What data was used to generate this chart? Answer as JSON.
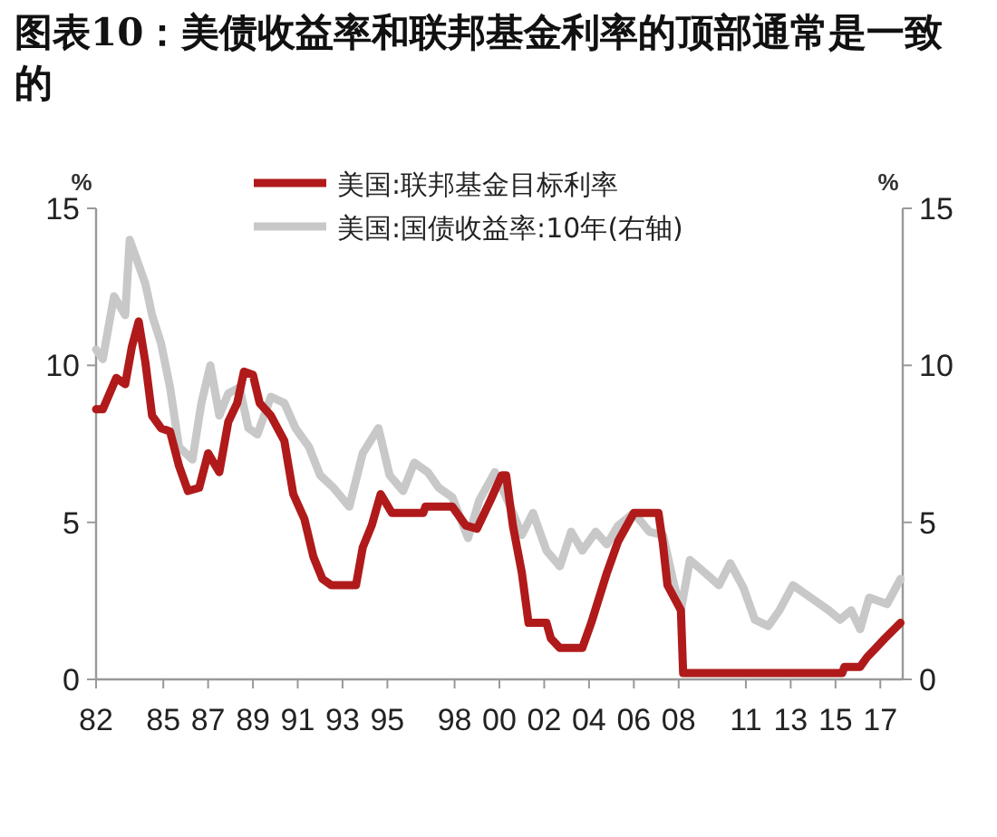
{
  "chart_data": {
    "type": "line",
    "title": "图表10：美债收益率和联邦基金利率的顶部通常是一致的",
    "ylabel": "%",
    "y2label": "%",
    "xlim": [
      1982,
      2018
    ],
    "ylim": [
      0,
      15
    ],
    "y2lim": [
      0,
      15
    ],
    "xticks": [
      {
        "value": 1982,
        "label": "82"
      },
      {
        "value": 1985,
        "label": "85"
      },
      {
        "value": 1987,
        "label": "87"
      },
      {
        "value": 1989,
        "label": "89"
      },
      {
        "value": 1991,
        "label": "91"
      },
      {
        "value": 1993,
        "label": "93"
      },
      {
        "value": 1995,
        "label": "95"
      },
      {
        "value": 1998,
        "label": "98"
      },
      {
        "value": 2000,
        "label": "00"
      },
      {
        "value": 2002,
        "label": "02"
      },
      {
        "value": 2004,
        "label": "04"
      },
      {
        "value": 2006,
        "label": "06"
      },
      {
        "value": 2008,
        "label": "08"
      },
      {
        "value": 2011,
        "label": "11"
      },
      {
        "value": 2013,
        "label": "13"
      },
      {
        "value": 2015,
        "label": "15"
      },
      {
        "value": 2017,
        "label": "17"
      }
    ],
    "yticks": [
      0,
      5,
      10,
      15
    ],
    "y2ticks": [
      0,
      5,
      10,
      15
    ],
    "legend": "top",
    "grid": false,
    "series": [
      {
        "name": "美国:联邦基金目标利率",
        "color": "#b01a1a",
        "x": [
          1982.0,
          1982.3,
          1982.9,
          1983.3,
          1983.6,
          1983.9,
          1984.2,
          1984.5,
          1984.9,
          1985.3,
          1985.7,
          1986.1,
          1986.6,
          1987.0,
          1987.5,
          1987.9,
          1988.3,
          1988.6,
          1989.0,
          1989.3,
          1989.8,
          1990.4,
          1990.8,
          1991.3,
          1991.7,
          1992.1,
          1992.5,
          1993.6,
          1993.9,
          1994.3,
          1994.7,
          1995.2,
          1996.6,
          1996.7,
          1997.9,
          1998.5,
          1999.0,
          1999.6,
          2000.1,
          2000.3,
          2000.6,
          2001.0,
          2001.3,
          2002.1,
          2002.3,
          2002.7,
          2003.7,
          2004.1,
          2004.8,
          2005.3,
          2006.0,
          2007.1,
          2007.3,
          2007.5,
          2008.1,
          2008.2,
          2015.3,
          2015.4,
          2016.1,
          2016.4,
          2016.8,
          2017.2,
          2017.9
        ],
        "values": [
          8.6,
          8.6,
          9.6,
          9.4,
          10.6,
          11.4,
          10.1,
          8.4,
          8.0,
          7.9,
          6.8,
          6.0,
          6.1,
          7.2,
          6.6,
          8.2,
          8.8,
          9.8,
          9.7,
          8.8,
          8.4,
          7.6,
          5.9,
          5.1,
          3.9,
          3.2,
          3.0,
          3.0,
          4.2,
          4.9,
          5.9,
          5.3,
          5.3,
          5.5,
          5.5,
          4.9,
          4.8,
          5.7,
          6.5,
          6.5,
          4.9,
          3.4,
          1.8,
          1.8,
          1.3,
          1.0,
          1.0,
          1.8,
          3.4,
          4.4,
          5.3,
          5.3,
          4.3,
          3.0,
          2.2,
          0.2,
          0.2,
          0.4,
          0.4,
          0.7,
          1.0,
          1.3,
          1.8
        ]
      },
      {
        "name": "美国:国债收益率:10年(右轴)",
        "color": "#c8c8c8",
        "axis": "y2",
        "x": [
          1982.0,
          1982.3,
          1982.8,
          1983.3,
          1983.5,
          1984.2,
          1984.5,
          1984.9,
          1985.3,
          1985.7,
          1986.3,
          1986.7,
          1987.1,
          1987.5,
          1987.9,
          1988.4,
          1988.8,
          1989.2,
          1989.8,
          1990.4,
          1990.9,
          1991.5,
          1992.0,
          1992.6,
          1993.3,
          1993.9,
          1994.6,
          1995.1,
          1995.7,
          1996.2,
          1996.8,
          1997.3,
          1997.9,
          1998.6,
          1999.1,
          1999.8,
          2000.3,
          2000.6,
          2001.0,
          2001.5,
          2002.1,
          2002.7,
          2003.2,
          2003.7,
          2004.3,
          2004.8,
          2005.3,
          2006.0,
          2006.7,
          2007.3,
          2007.8,
          2008.1,
          2008.5,
          2009.0,
          2009.8,
          2010.3,
          2010.9,
          2011.4,
          2012.0,
          2012.5,
          2013.1,
          2013.9,
          2014.7,
          2015.2,
          2015.7,
          2016.1,
          2016.5,
          2017.3,
          2017.9
        ],
        "values": [
          10.5,
          10.2,
          12.2,
          11.6,
          14.0,
          12.6,
          11.6,
          10.7,
          9.3,
          7.4,
          7.0,
          8.8,
          10.0,
          8.4,
          9.1,
          9.3,
          8.0,
          7.8,
          9.0,
          8.8,
          8.0,
          7.4,
          6.5,
          6.1,
          5.5,
          7.2,
          8.0,
          6.5,
          6.0,
          6.9,
          6.6,
          6.1,
          5.8,
          4.5,
          5.7,
          6.6,
          5.8,
          5.3,
          4.6,
          5.3,
          4.1,
          3.6,
          4.7,
          4.1,
          4.7,
          4.3,
          4.9,
          5.3,
          4.7,
          4.6,
          3.0,
          2.2,
          3.8,
          3.5,
          3.0,
          3.7,
          2.9,
          1.9,
          1.7,
          2.2,
          3.0,
          2.6,
          2.2,
          1.9,
          2.2,
          1.6,
          2.6,
          2.4,
          3.2
        ]
      }
    ]
  }
}
